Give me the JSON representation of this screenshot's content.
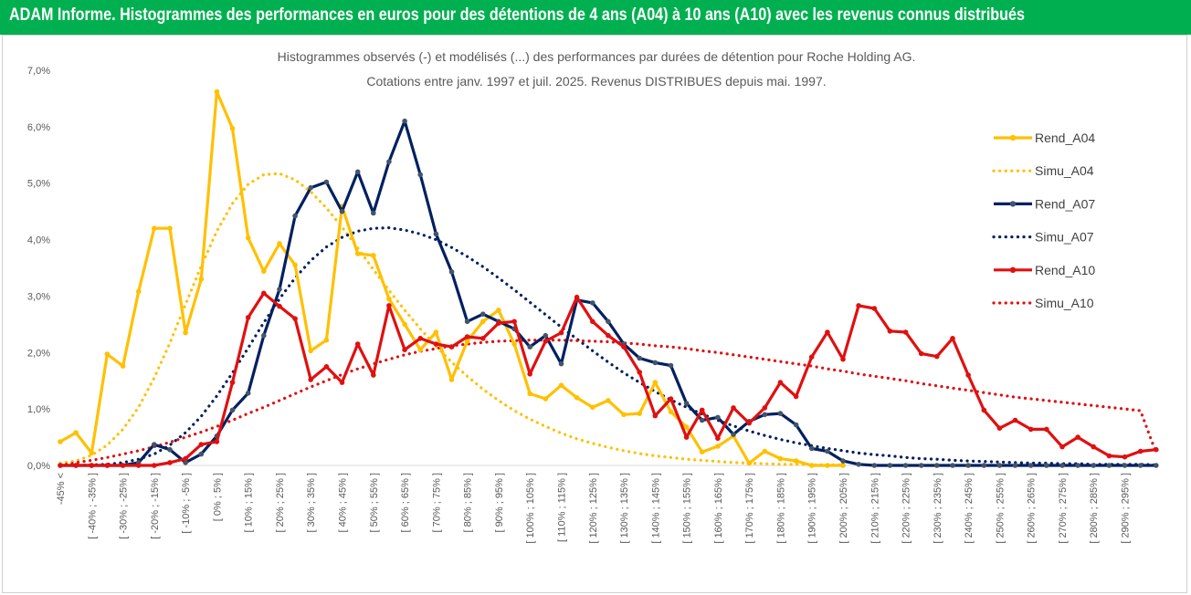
{
  "banner": {
    "title": "ADAM Informe. Histogrammes des performances en euros pour des détentions de 4 ans (A04) à 10 ans (A10) avec les revenus connus distribués",
    "color": "#00b050"
  },
  "chart_data": {
    "type": "line",
    "title": "Histogrammes observés (-) et modélisés (...) des performances par durées de détention pour Roche Holding AG.",
    "subtitle": "Cotations entre janv. 1997 et juil. 2025. Revenus DISTRIBUES depuis mai. 1997.",
    "xlabel": "",
    "ylabel": "",
    "ylim": [
      0,
      7
    ],
    "y_ticks": [
      "0,0%",
      "1,0%",
      "2,0%",
      "3,0%",
      "4,0%",
      "5,0%",
      "6,0%",
      "7,0%"
    ],
    "grid": false,
    "legend_position": "right",
    "categories": [
      "-45% <",
      "[ -45% ; -40% ]",
      "[ -40% ; -35% ]",
      "[ -35% ; -30% ]",
      "[ -30% ; -25% ]",
      "[ -25% ; -20% ]",
      "[ -20% ; -15% ]",
      "[ -15% ; -10% ]",
      "[ -10% ; -5% ]",
      "[ -5% ; 0% ]",
      "[ 0% ; 5% ]",
      "[ 5% ; 10% ]",
      "[ 10% ; 15% ]",
      "[ 15% ; 20% ]",
      "[ 20% ; 25% ]",
      "[ 25% ; 30% ]",
      "[ 30% ; 35% ]",
      "[ 35% ; 40% ]",
      "[ 40% ; 45% ]",
      "[ 45% ; 50% ]",
      "[ 50% ; 55% ]",
      "[ 55% ; 60% ]",
      "[ 60% ; 65% ]",
      "[ 65% ; 70% ]",
      "[ 70% ; 75% ]",
      "[ 75% ; 80% ]",
      "[ 80% ; 85% ]",
      "[ 85% ; 90% ]",
      "[ 90% ; 95% ]",
      "[ 95% ; 100% ]",
      "[ 100% ; 105% ]",
      "[ 105% ; 110% ]",
      "[ 110% ; 115% ]",
      "[ 115% ; 120% ]",
      "[ 120% ; 125% ]",
      "[ 125% ; 130% ]",
      "[ 130% ; 135% ]",
      "[ 135% ; 140% ]",
      "[ 140% ; 145% ]",
      "[ 145% ; 150% ]",
      "[ 150% ; 155% ]",
      "[ 155% ; 160% ]",
      "[ 160% ; 165% ]",
      "[ 165% ; 170% ]",
      "[ 170% ; 175% ]",
      "[ 175% ; 180% ]",
      "[ 180% ; 185% ]",
      "[ 185% ; 190% ]",
      "[ 190% ; 195% ]",
      "[ 195% ; 200% ]",
      "[ 200% ; 205% ]",
      "[ 205% ; 210% ]",
      "[ 210% ; 215% ]",
      "[ 215% ; 220% ]",
      "[ 220% ; 225% ]",
      "[ 225% ; 230% ]",
      "[ 230% ; 235% ]",
      "[ 235% ; 240% ]",
      "[ 240% ; 245% ]",
      "[ 245% ; 250% ]",
      "[ 250% ; 255% ]",
      "[ 255% ; 260% ]",
      "[ 260% ; 265% ]",
      "[ 265% ; 270% ]",
      "[ 270% ; 275% ]",
      "[ 275% ; 280% ]",
      "[ 280% ; 285% ]",
      "[ 285% ; 290% ]",
      "[ 290% ; 295% ]",
      "[ 295% ; 300% ]",
      "300% >"
    ],
    "x_tick_labels_shown": [
      "-45% <",
      "[ -40% ; -35% ]",
      "[ -30% ; -25% ]",
      "[ -20% ; -15% ]",
      "[ -10% ; -5% ]",
      "[ 0% ; 5% ]",
      "[ 10% ; 15% ]",
      "[ 20% ; 25% ]",
      "[ 30% ; 35% ]",
      "[ 40% ; 45% ]",
      "[ 50% ; 55% ]",
      "[ 60% ; 65% ]",
      "[ 70% ; 75% ]",
      "[ 80% ; 85% ]",
      "[ 90% ; 95% ]",
      "[ 100% ; 105% ]",
      "[ 110% ; 115% ]",
      "[ 120% ; 125% ]",
      "[ 130% ; 135% ]",
      "[ 140% ; 145% ]",
      "[ 150% ; 155% ]",
      "[ 160% ; 165% ]",
      "[ 170% ; 175% ]",
      "[ 180% ; 185% ]",
      "[ 190% ; 195% ]",
      "[ 200% ; 205% ]",
      "[ 210% ; 215% ]",
      "[ 220% ; 225% ]",
      "[ 230% ; 235% ]",
      "[ 240% ; 245% ]",
      "[ 250% ; 255% ]",
      "[ 260% ; 265% ]",
      "[ 270% ; 275% ]",
      "[ 280% ; 285% ]",
      "[ 290% ; 295% ]"
    ],
    "series": [
      {
        "name": "Rend_A04",
        "style": "solid",
        "color": "#ffc000",
        "values": [
          0.42,
          0.58,
          0.22,
          1.97,
          1.76,
          3.08,
          4.2,
          4.2,
          2.35,
          3.3,
          6.62,
          5.97,
          4.03,
          3.44,
          3.93,
          3.55,
          2.03,
          2.22,
          4.59,
          3.75,
          3.72,
          2.95,
          2.5,
          2.05,
          2.36,
          1.52,
          2.2,
          2.55,
          2.75,
          2.15,
          1.27,
          1.18,
          1.42,
          1.2,
          1.03,
          1.15,
          0.9,
          0.92,
          1.47,
          0.95,
          0.68,
          0.24,
          0.34,
          0.52,
          0.04,
          0.25,
          0.12,
          0.08,
          0.0,
          0.0,
          0.0,
          null,
          null,
          null,
          null,
          null,
          null,
          null,
          null,
          null,
          null,
          null,
          null,
          null,
          null,
          null,
          null,
          null,
          null,
          null,
          null
        ]
      },
      {
        "name": "Simu_A04",
        "style": "dotted",
        "color": "#ffc000",
        "values": [
          0.04,
          0.08,
          0.18,
          0.36,
          0.64,
          1.03,
          1.55,
          2.17,
          2.85,
          3.53,
          4.15,
          4.64,
          4.98,
          5.15,
          5.17,
          5.06,
          4.85,
          4.56,
          4.22,
          3.85,
          3.47,
          3.1,
          2.75,
          2.42,
          2.11,
          1.83,
          1.58,
          1.35,
          1.15,
          0.97,
          0.82,
          0.69,
          0.57,
          0.47,
          0.39,
          0.32,
          0.26,
          0.21,
          0.17,
          0.14,
          0.11,
          0.09,
          0.07,
          0.05,
          0.04,
          0.03,
          0.02,
          0.02,
          0.01,
          0.01,
          0.01,
          null,
          null,
          null,
          null,
          null,
          null,
          null,
          null,
          null,
          null,
          null,
          null,
          null,
          null,
          null,
          null,
          null,
          null,
          null,
          null
        ]
      },
      {
        "name": "Rend_A07",
        "style": "solid",
        "color": "#002060",
        "values": [
          0.0,
          0.0,
          0.0,
          0.0,
          0.0,
          0.05,
          0.37,
          0.28,
          0.05,
          0.2,
          0.52,
          0.98,
          1.28,
          2.3,
          3.12,
          4.42,
          4.92,
          5.02,
          4.5,
          5.2,
          4.47,
          5.38,
          6.1,
          5.15,
          4.1,
          3.43,
          2.55,
          2.68,
          2.55,
          2.42,
          2.1,
          2.3,
          1.8,
          2.93,
          2.88,
          2.55,
          2.15,
          1.9,
          1.82,
          1.77,
          1.1,
          0.8,
          0.85,
          0.55,
          0.78,
          0.9,
          0.92,
          0.72,
          0.3,
          0.25,
          0.08,
          0.02,
          0.0,
          0.0,
          0.0,
          0.0,
          0.0,
          0.0,
          0.0,
          0.0,
          0.0,
          0.0,
          0.0,
          0.0,
          0.0,
          0.0,
          0.0,
          0.0,
          0.0,
          0.0,
          0.0
        ]
      },
      {
        "name": "Simu_A07",
        "style": "dotted",
        "color": "#002060",
        "values": [
          0.0,
          0.0,
          0.01,
          0.02,
          0.05,
          0.11,
          0.2,
          0.36,
          0.58,
          0.87,
          1.23,
          1.64,
          2.08,
          2.53,
          2.95,
          3.32,
          3.63,
          3.87,
          4.04,
          4.15,
          4.2,
          4.21,
          4.17,
          4.1,
          4.0,
          3.86,
          3.7,
          3.52,
          3.32,
          3.11,
          2.89,
          2.67,
          2.45,
          2.24,
          2.03,
          1.83,
          1.64,
          1.47,
          1.31,
          1.16,
          1.03,
          0.91,
          0.8,
          0.7,
          0.61,
          0.53,
          0.46,
          0.4,
          0.35,
          0.3,
          0.26,
          0.22,
          0.19,
          0.17,
          0.14,
          0.12,
          0.11,
          0.09,
          0.08,
          0.07,
          0.06,
          0.05,
          0.04,
          0.04,
          0.03,
          0.03,
          0.02,
          0.02,
          0.02,
          0.02,
          0.01
        ]
      },
      {
        "name": "Rend_A10",
        "style": "solid",
        "color": "#e01010",
        "values": [
          0.0,
          0.0,
          0.0,
          0.0,
          0.0,
          0.0,
          0.0,
          0.05,
          0.12,
          0.37,
          0.42,
          1.47,
          2.62,
          3.05,
          2.82,
          2.6,
          1.52,
          1.75,
          1.47,
          2.15,
          1.6,
          2.83,
          2.05,
          2.25,
          2.15,
          2.1,
          2.28,
          2.25,
          2.52,
          2.55,
          1.62,
          2.2,
          2.35,
          2.98,
          2.55,
          2.3,
          2.1,
          1.65,
          0.88,
          1.18,
          0.5,
          0.98,
          0.48,
          1.02,
          0.75,
          1.02,
          1.47,
          1.22,
          1.92,
          2.36,
          1.88,
          2.83,
          2.78,
          2.38,
          2.36,
          1.98,
          1.93,
          2.25,
          1.6,
          0.98,
          0.66,
          0.8,
          0.64,
          0.64,
          0.33,
          0.5,
          0.33,
          0.17,
          0.15,
          0.25,
          0.28
        ]
      },
      {
        "name": "Simu_A10",
        "style": "dotted",
        "color": "#e01010",
        "values": [
          0.0,
          0.05,
          0.09,
          0.14,
          0.2,
          0.26,
          0.33,
          0.41,
          0.5,
          0.59,
          0.69,
          0.8,
          0.92,
          1.03,
          1.15,
          1.27,
          1.39,
          1.5,
          1.61,
          1.71,
          1.8,
          1.88,
          1.96,
          2.02,
          2.07,
          2.12,
          2.15,
          2.18,
          2.2,
          2.21,
          2.22,
          2.22,
          2.22,
          2.21,
          2.2,
          2.19,
          2.17,
          2.15,
          2.12,
          2.1,
          2.07,
          2.03,
          2.0,
          1.96,
          1.92,
          1.88,
          1.84,
          1.8,
          1.76,
          1.71,
          1.67,
          1.62,
          1.58,
          1.54,
          1.5,
          1.45,
          1.41,
          1.37,
          1.33,
          1.29,
          1.25,
          1.21,
          1.18,
          1.15,
          1.12,
          1.09,
          1.06,
          1.03,
          1.0,
          0.97,
          0.22
        ]
      }
    ]
  }
}
